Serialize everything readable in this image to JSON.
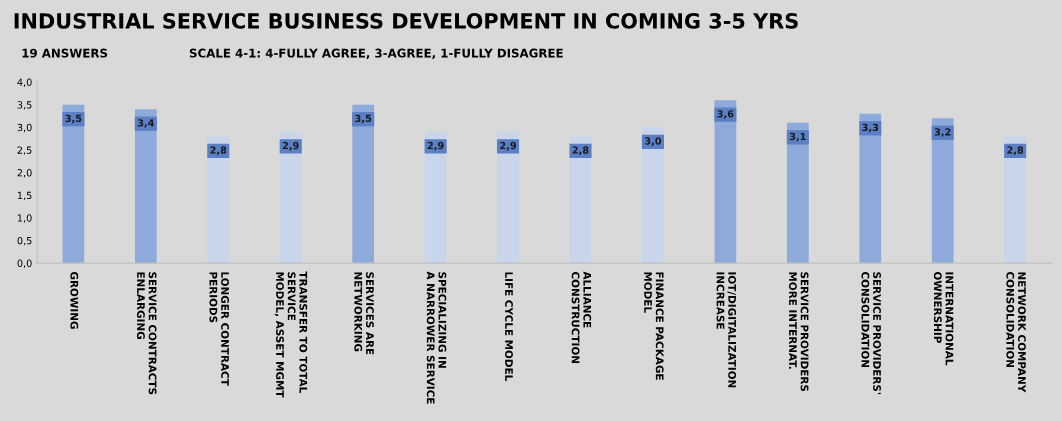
{
  "chart_data": {
    "type": "bar",
    "title": "INDUSTRIAL SERVICE BUSINESS DEVELOPMENT IN COMING 3-5 YRS",
    "subtitle": "19 ANSWERS",
    "annotations": [
      "SCALE 4-1: 4-FULLY AGREE, 3-AGREE, 1-FULLY DISAGREE"
    ],
    "categories": [
      "GROWING",
      "SERVICE CONTRACTS\nENLARGING",
      "LONGER CONTRACT\nPERIODS",
      "TRANSFER TO TOTAL\nSERVICE\nMODEL, ASSET MGMT",
      "SERVICES ARE\nNETWORKING",
      "SPECIALIZING IN\nA NARROWER SERVICE",
      "LIFE CYCLE MODEL",
      "ALLIANCE\nCONSTRUCTION",
      "FINANCE PACKAGE\nMODEL",
      "IOT/DIGITALIZATION\nINCREASE",
      "SERVICE PROVIDERS\nMORE INTERNAT.",
      "SERVICE PROVIDERS'\nCONSOLIDATION",
      "INTERNATIONAL\nOWNERSHIP",
      "NETWORK COMPANY\nCONSOLIDATION"
    ],
    "values": [
      3.5,
      3.4,
      2.8,
      2.9,
      3.5,
      2.9,
      2.9,
      2.8,
      3.0,
      3.6,
      3.1,
      3.3,
      3.2,
      2.8
    ],
    "value_labels": [
      "3,5",
      "3,4",
      "2,8",
      "2,9",
      "3,5",
      "2,9",
      "2,9",
      "2,8",
      "3,0",
      "3,6",
      "3,1",
      "3,3",
      "3,2",
      "2,8"
    ],
    "colors": [
      "#8eaadb",
      "#8eaadb",
      "#c9d5ea",
      "#c9d5ea",
      "#8eaadb",
      "#c9d5ea",
      "#c9d5ea",
      "#c9d5ea",
      "#c9d5ea",
      "#8eaadb",
      "#8eaadb",
      "#8eaadb",
      "#8eaadb",
      "#c9d5ea"
    ],
    "ylim": [
      0,
      4
    ],
    "yticks": [
      {
        "value": 0,
        "label": "0,0"
      },
      {
        "value": 0.5,
        "label": "0,5"
      },
      {
        "value": 1,
        "label": "1,0"
      },
      {
        "value": 1.5,
        "label": "1,5"
      },
      {
        "value": 2,
        "label": "2,0"
      },
      {
        "value": 2.5,
        "label": "2,5"
      },
      {
        "value": 3,
        "label": "3,0"
      },
      {
        "value": 3.5,
        "label": "3,5"
      },
      {
        "value": 4,
        "label": "4,0"
      }
    ],
    "grid": false,
    "legend": false
  }
}
